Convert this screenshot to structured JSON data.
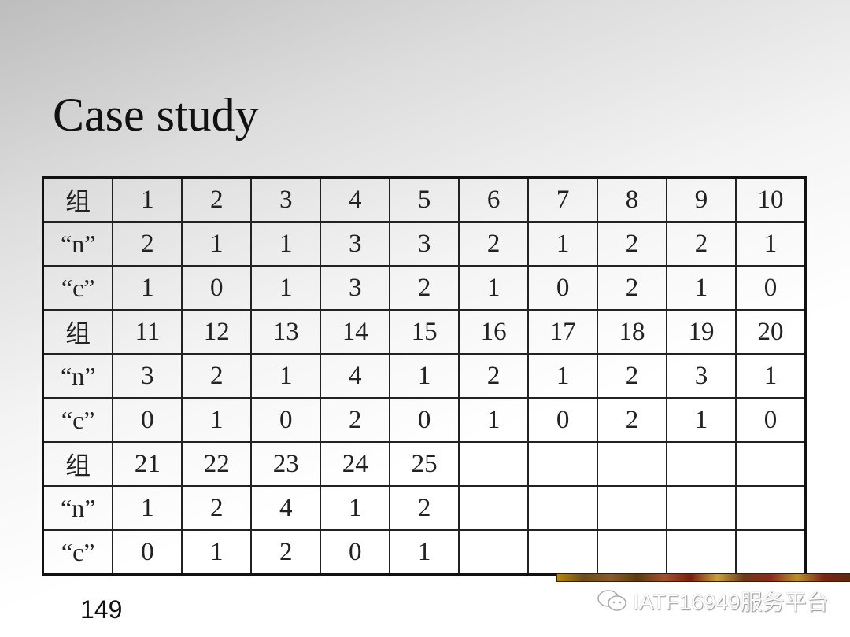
{
  "title": "Case study",
  "table": {
    "rows": [
      [
        "组",
        "1",
        "2",
        "3",
        "4",
        "5",
        "6",
        "7",
        "8",
        "9",
        "10"
      ],
      [
        "“n”",
        "2",
        "1",
        "1",
        "3",
        "3",
        "2",
        "1",
        "2",
        "2",
        "1"
      ],
      [
        "“c”",
        "1",
        "0",
        "1",
        "3",
        "2",
        "1",
        "0",
        "2",
        "1",
        "0"
      ],
      [
        "组",
        "11",
        "12",
        "13",
        "14",
        "15",
        "16",
        "17",
        "18",
        "19",
        "20"
      ],
      [
        "“n”",
        "3",
        "2",
        "1",
        "4",
        "1",
        "2",
        "1",
        "2",
        "3",
        "1"
      ],
      [
        "“c”",
        "0",
        "1",
        "0",
        "2",
        "0",
        "1",
        "0",
        "2",
        "1",
        "0"
      ],
      [
        "组",
        "21",
        "22",
        "23",
        "24",
        "25",
        "",
        "",
        "",
        "",
        ""
      ],
      [
        "“n”",
        "1",
        "2",
        "4",
        "1",
        "2",
        "",
        "",
        "",
        "",
        ""
      ],
      [
        "“c”",
        "0",
        "1",
        "2",
        "0",
        "1",
        "",
        "",
        "",
        "",
        ""
      ]
    ]
  },
  "page_number": "149",
  "watermark": {
    "icon": "wechat-icon",
    "text": "IATF16949服务平台"
  }
}
